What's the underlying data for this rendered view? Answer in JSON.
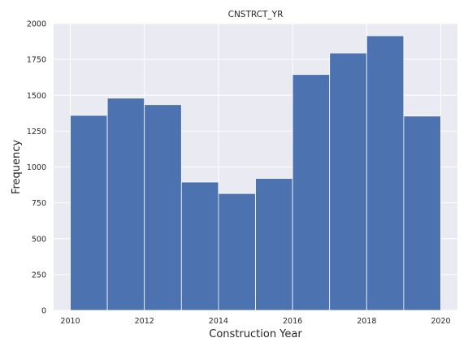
{
  "chart_data": {
    "type": "bar",
    "title": "CNSTRCT_YR",
    "xlabel": "Construction Year",
    "ylabel": "Frequency",
    "bin_edges": [
      2010,
      2011,
      2012,
      2013,
      2014,
      2015,
      2016,
      2017,
      2018,
      2019,
      2020
    ],
    "values": [
      1360,
      1480,
      1435,
      895,
      815,
      920,
      1645,
      1795,
      1915,
      1355
    ],
    "xlim": [
      2009.55,
      2020.45
    ],
    "ylim": [
      0,
      2000
    ],
    "x_ticks": [
      2010,
      2012,
      2014,
      2016,
      2018,
      2020
    ],
    "y_ticks": [
      0,
      250,
      500,
      750,
      1000,
      1250,
      1500,
      1750,
      2000
    ],
    "y_tick_labels": [
      "0",
      "250",
      "500",
      "750",
      "1000",
      "1250",
      "1500",
      "1750",
      "2000"
    ],
    "grid": true,
    "colors": {
      "bar": "#4c72b0",
      "plot_bg": "#eaeaf2",
      "grid": "#ffffff"
    }
  }
}
